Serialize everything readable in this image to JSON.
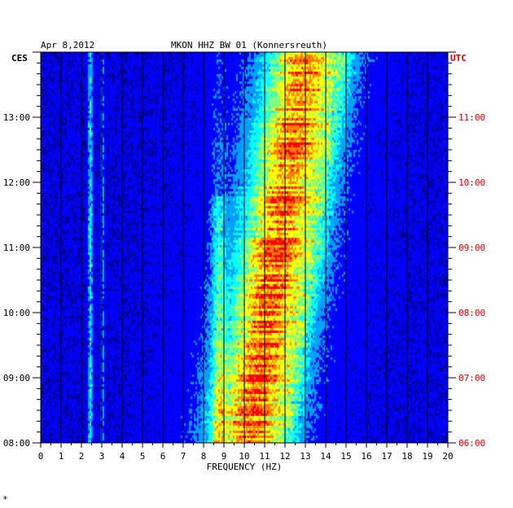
{
  "header": {
    "date": "Apr 8,2012",
    "station": "MKON HHZ BW 01 (Konnersreuth)"
  },
  "footer": {
    "mark": "*"
  },
  "colors": {
    "background": "#00008f",
    "grid": "#000000",
    "left_axis_text": "#000000",
    "right_axis_text": "#e00000"
  },
  "chart_data": {
    "type": "heatmap",
    "xlabel": "FREQUENCY (HZ)",
    "xlim": [
      0,
      20
    ],
    "x_ticks": [
      "0",
      "1",
      "2",
      "3",
      "4",
      "5",
      "6",
      "7",
      "8",
      "9",
      "10",
      "11",
      "12",
      "13",
      "14",
      "15",
      "16",
      "17",
      "18",
      "19",
      "20"
    ],
    "left_axis": {
      "label": "CES",
      "range_hours": [
        8.0,
        14.0
      ],
      "ticks": [
        {
          "hour": 13,
          "label": "13:00"
        },
        {
          "hour": 12,
          "label": "12:00"
        },
        {
          "hour": 11,
          "label": "11:00"
        },
        {
          "hour": 10,
          "label": "10:00"
        },
        {
          "hour": 9,
          "label": "09:00"
        },
        {
          "hour": 8,
          "label": "08:00"
        }
      ]
    },
    "right_axis": {
      "label": "UTC",
      "ticks": [
        {
          "hour": 13,
          "label": "11:00"
        },
        {
          "hour": 12,
          "label": "10:00"
        },
        {
          "hour": 11,
          "label": "09:00"
        },
        {
          "hour": 10,
          "label": "08:00"
        },
        {
          "hour": 9,
          "label": "07:00"
        },
        {
          "hour": 8,
          "label": "06:00"
        }
      ]
    },
    "grid": true,
    "colormap": [
      "#00008f",
      "#0000ff",
      "#00a0ff",
      "#00ffff",
      "#80ff80",
      "#ffff00",
      "#ff8000",
      "#ff0000"
    ]
  }
}
